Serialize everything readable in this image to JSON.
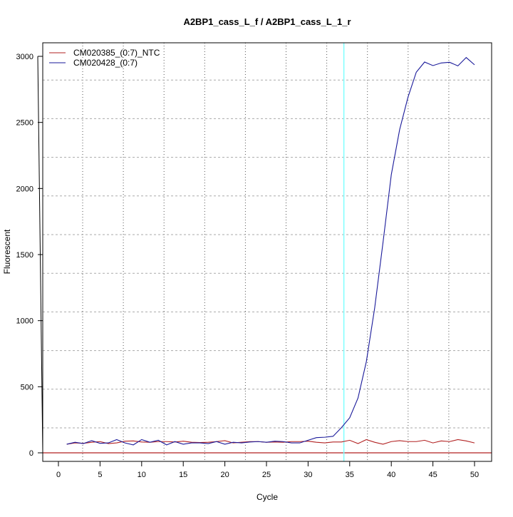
{
  "chart_data": {
    "type": "line",
    "title": "A2BP1_cass_L_f / A2BP1_cass_L_1_r",
    "xlabel": "Cycle",
    "ylabel": "Fluorescent",
    "xlim": [
      -2,
      52
    ],
    "ylim": [
      -60,
      3150
    ],
    "xticks": [
      0,
      5,
      10,
      15,
      20,
      25,
      30,
      35,
      40,
      45,
      50
    ],
    "yticks": [
      0,
      500,
      1000,
      1500,
      2000,
      2500,
      3000
    ],
    "grid": true,
    "legend_position": "top-left",
    "threshold": {
      "value": 0,
      "color": "#b22222"
    },
    "threshold_cycle": {
      "value": 34.3,
      "color": "#7fffff"
    },
    "x": [
      1,
      2,
      3,
      4,
      5,
      6,
      7,
      8,
      9,
      10,
      11,
      12,
      13,
      14,
      15,
      16,
      17,
      18,
      19,
      20,
      21,
      22,
      23,
      24,
      25,
      26,
      27,
      28,
      29,
      30,
      31,
      32,
      33,
      34,
      35,
      36,
      37,
      38,
      39,
      40,
      41,
      42,
      43,
      44,
      45,
      46,
      47,
      48,
      49,
      50
    ],
    "series": [
      {
        "name": "CM020385_(0:7)_NTC",
        "color": "#b22222",
        "values": [
          65,
          75,
          72,
          80,
          85,
          70,
          75,
          88,
          90,
          82,
          80,
          85,
          85,
          82,
          88,
          80,
          78,
          80,
          85,
          92,
          75,
          80,
          85,
          85,
          80,
          82,
          80,
          85,
          85,
          88,
          80,
          75,
          82,
          82,
          95,
          70,
          100,
          80,
          65,
          85,
          92,
          85,
          85,
          95,
          75,
          90,
          85,
          100,
          90,
          75
        ]
      },
      {
        "name": "CM020428_(0:7)",
        "color": "#1a1a9a",
        "values": [
          65,
          80,
          70,
          92,
          72,
          75,
          100,
          75,
          60,
          100,
          80,
          95,
          60,
          85,
          65,
          75,
          75,
          70,
          85,
          65,
          80,
          75,
          82,
          85,
          80,
          88,
          85,
          75,
          75,
          95,
          115,
          118,
          125,
          190,
          265,
          415,
          690,
          1095,
          1590,
          2105,
          2445,
          2690,
          2880,
          2957,
          2930,
          2950,
          2955,
          2928,
          2991,
          2936
        ]
      }
    ]
  }
}
